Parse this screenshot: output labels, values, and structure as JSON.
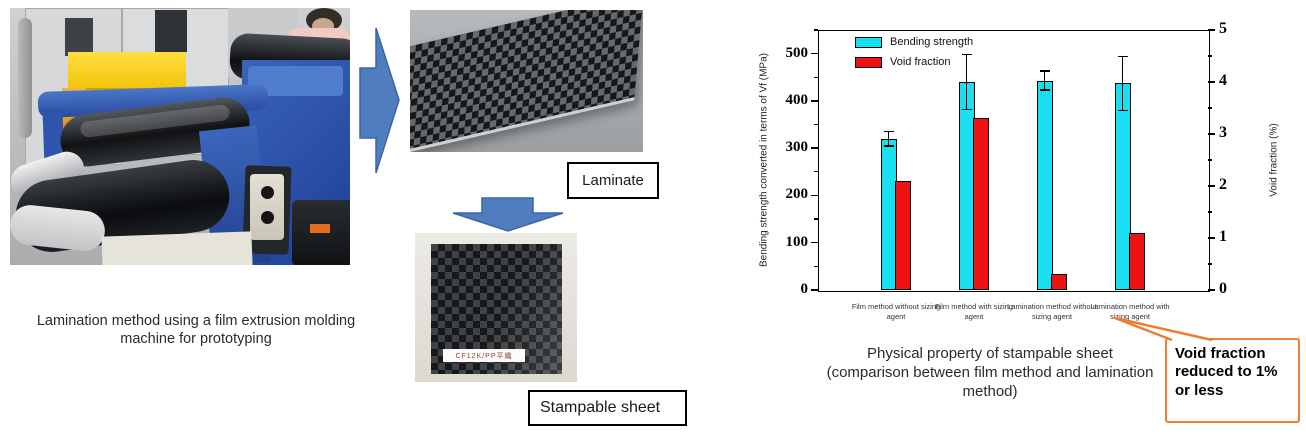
{
  "left_panel": {
    "caption_line1": "Lamination method using a film extrusion molding",
    "caption_line2": "machine for prototyping"
  },
  "flow": {
    "laminate_label": "Laminate",
    "stampable_label": "Stampable sheet",
    "sheet_tag": "CF12K/PP平織"
  },
  "chart_data": {
    "type": "bar",
    "categories": [
      "Film method without sizing agent",
      "Film method with sizing agent",
      "Lamination method without sizing agent",
      "Lamination method with sizing agent"
    ],
    "series": [
      {
        "name": "Bending strength",
        "axis": "left",
        "color": "#19dff0",
        "values": [
          320,
          440,
          443,
          437
        ],
        "errors": [
          15,
          58,
          20,
          57
        ]
      },
      {
        "name": "Void fraction",
        "axis": "right",
        "color": "#ee1212",
        "values": [
          2.1,
          3.3,
          0.3,
          1.1
        ]
      }
    ],
    "left_axis": {
      "label": "Bending strength converted in terms of Vf (MPa)",
      "min": 0,
      "max": 550,
      "major_ticks": [
        0,
        100,
        200,
        300,
        400,
        500
      ],
      "minor_step": 50
    },
    "right_axis": {
      "label": "Void fraction (%)",
      "min": 0,
      "max": 5,
      "major_ticks": [
        0,
        1,
        2,
        3,
        4,
        5
      ],
      "minor_step": 0.5
    },
    "legend_position": "top-left inside plot",
    "grid": false
  },
  "chart_caption": {
    "line1": "Physical property of stampable sheet",
    "line2": "(comparison between film method and lamination method)"
  },
  "callout": {
    "text": "Void fraction reduced to 1% or less",
    "border_color": "#ED7D31"
  },
  "colors": {
    "arrow_fill": "#4f7dbd",
    "arrow_stroke": "#3a66a8",
    "bending_bar": "#19dff0",
    "void_bar": "#ee1212"
  }
}
